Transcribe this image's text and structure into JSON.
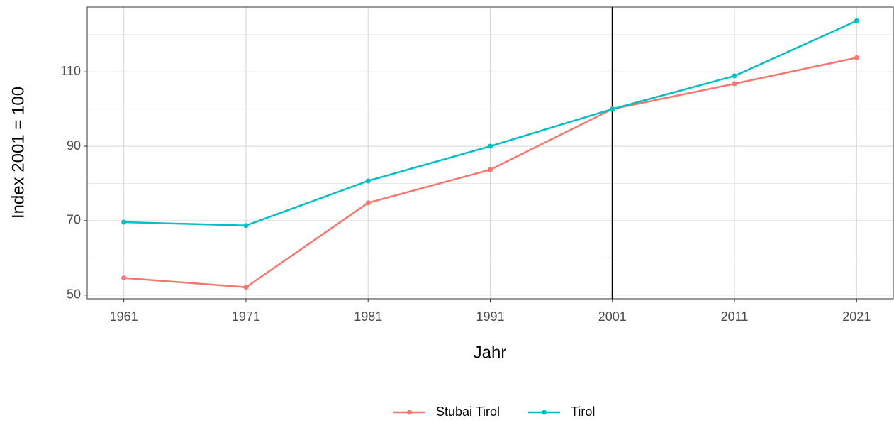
{
  "chart_data": {
    "type": "line",
    "x_label": "Jahr",
    "y_label": "Index 2001 = 100",
    "x": [
      1961,
      1971,
      1981,
      1991,
      2001,
      2011,
      2021
    ],
    "series": [
      {
        "name": "Stubai Tirol",
        "color": "#F8766D",
        "values": [
          54.6,
          52.1,
          74.8,
          83.7,
          100,
          106.8,
          113.8
        ]
      },
      {
        "name": "Tirol",
        "color": "#00BFC4",
        "values": [
          69.6,
          68.7,
          80.7,
          90,
          100,
          108.9,
          123.7
        ]
      }
    ],
    "xlim": [
      1958,
      2024
    ],
    "xticks": [
      1961,
      1971,
      1981,
      1991,
      2001,
      2011,
      2021
    ],
    "ylim": [
      49,
      127.4
    ],
    "yticks": [
      50,
      70,
      90,
      110
    ],
    "yminorticks": [
      60,
      80,
      100,
      120
    ],
    "vline": 2001,
    "grid": true,
    "legend": "bottom"
  }
}
